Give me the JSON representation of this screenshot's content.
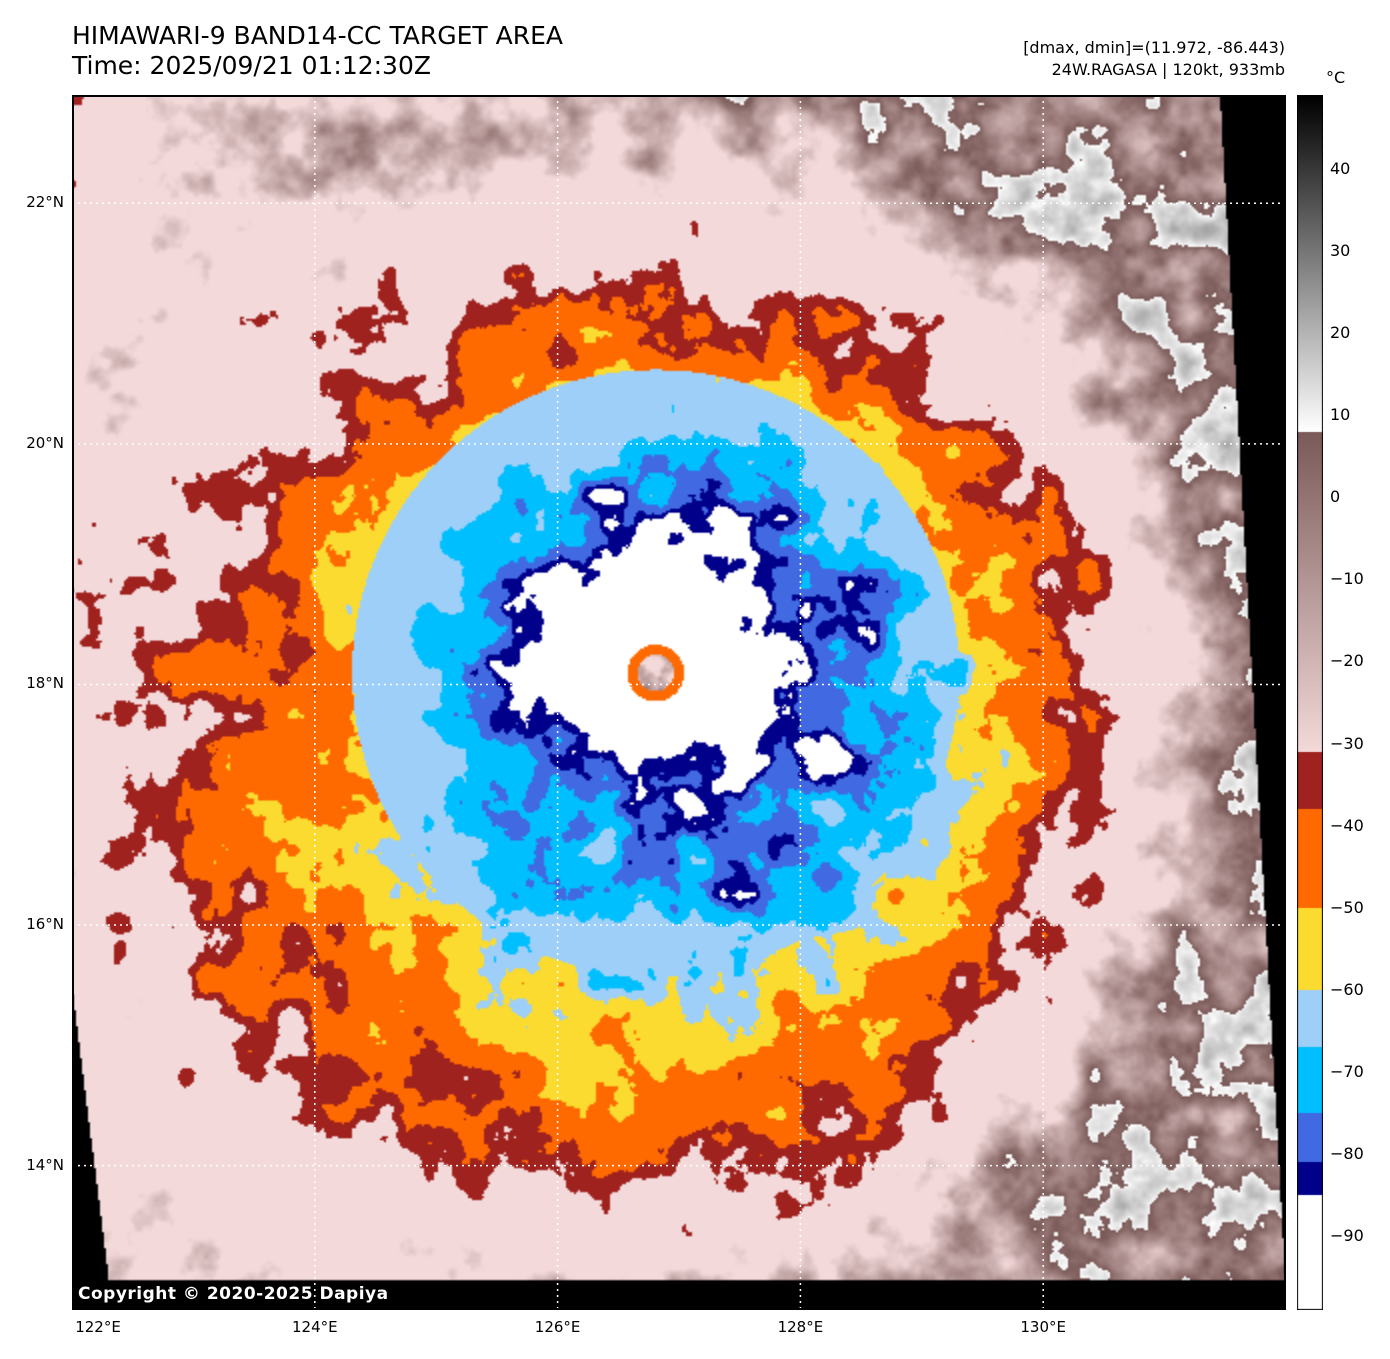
{
  "header": {
    "title": "HIMAWARI-9 BAND14-CC TARGET AREA",
    "time": "Time: 2025/09/21 01:12:30Z",
    "dinfo": "[dmax, dmin]=(11.972, -86.443)",
    "storm": "24W.RAGASA | 120kt, 933mb"
  },
  "map": {
    "lon_range": [
      122.0,
      132.0
    ],
    "lat_range": [
      12.8,
      22.9
    ],
    "grid": true,
    "lat_labels": [
      {
        "value": 22,
        "text": "22°N"
      },
      {
        "value": 20,
        "text": "20°N"
      },
      {
        "value": 18,
        "text": "18°N"
      },
      {
        "value": 16,
        "text": "16°N"
      },
      {
        "value": 14,
        "text": "14°N"
      }
    ],
    "lon_labels": [
      {
        "value": 122,
        "text": "122°E"
      },
      {
        "value": 124,
        "text": "124°E"
      },
      {
        "value": 126,
        "text": "126°E"
      },
      {
        "value": 128,
        "text": "128°E"
      },
      {
        "value": 130,
        "text": "130°E"
      }
    ],
    "storm_center": {
      "lon": 126.8,
      "lat": 18.1
    },
    "copyright": "Copyright © 2020-2025 Dapiya"
  },
  "colorbar": {
    "unit": "°C",
    "range": [
      49,
      -99
    ],
    "ticks": [
      40,
      30,
      20,
      10,
      0,
      -10,
      -20,
      -30,
      -40,
      -50,
      -60,
      -70,
      -80,
      -90
    ],
    "tick_labels": [
      "40",
      "30",
      "20",
      "10",
      "0",
      "−10",
      "−20",
      "−30",
      "−40",
      "−50",
      "−60",
      "−70",
      "−80",
      "−90"
    ],
    "bands": [
      {
        "min": -99,
        "max": -85,
        "color": "#ffffff"
      },
      {
        "min": -85,
        "max": -81,
        "color": "#00008b"
      },
      {
        "min": -81,
        "max": -75,
        "color": "#4169e1"
      },
      {
        "min": -75,
        "max": -67,
        "color": "#00bfff"
      },
      {
        "min": -67,
        "max": -60,
        "color": "#9ecff8"
      },
      {
        "min": -60,
        "max": -50,
        "color": "#fbdb2f"
      },
      {
        "min": -50,
        "max": -38,
        "color": "#ff6a00"
      },
      {
        "min": -38,
        "max": -31,
        "color": "#a0221e"
      }
    ],
    "gray_top": "#000000",
    "gray_mid": "#ffffff",
    "pink_mid": "#f3d9da",
    "brown_mid": "#7a5a58"
  }
}
